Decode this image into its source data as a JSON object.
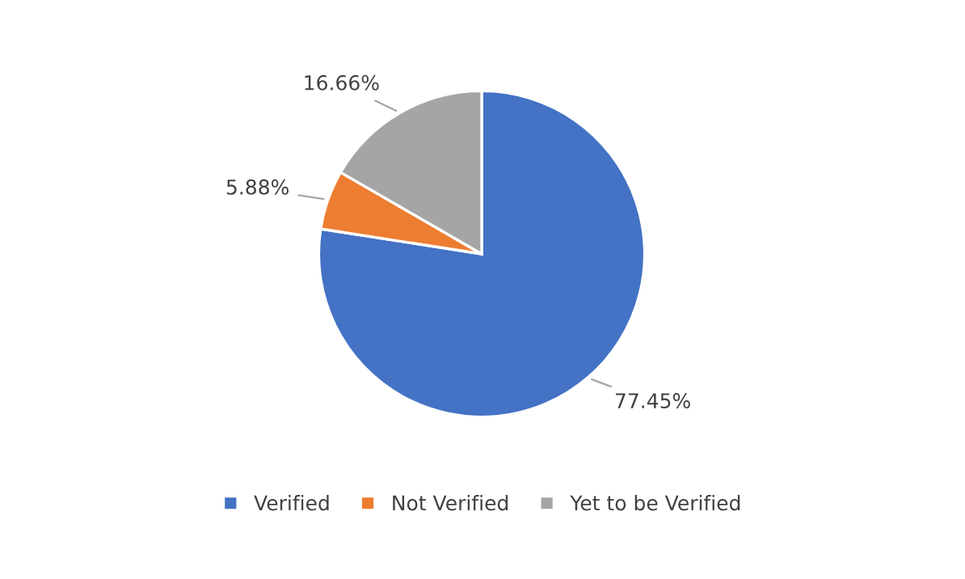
{
  "chart_data": {
    "type": "pie",
    "categories": [
      "Verified",
      "Not Verified",
      "Yet to be Verified"
    ],
    "values": [
      77.45,
      5.88,
      16.66
    ],
    "colors": [
      "#4472c4",
      "#ed7d31",
      "#a5a5a5"
    ],
    "value_labels": [
      "77.45%",
      "5.88%",
      "16.66%"
    ],
    "legend": "bottom"
  }
}
